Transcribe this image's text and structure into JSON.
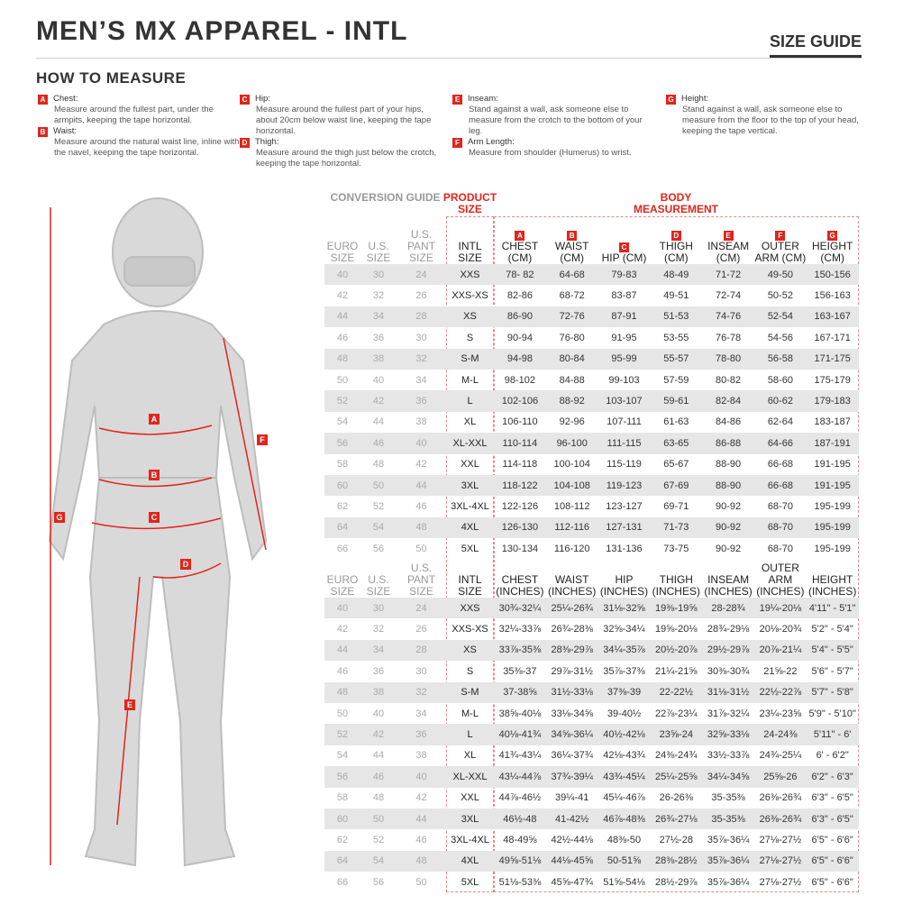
{
  "header": {
    "title": "MEN’S MX APPAREL - INTL",
    "size_guide": "SIZE GUIDE"
  },
  "how_to_measure": {
    "title": "HOW TO MEASURE",
    "items": [
      {
        "letter": "A",
        "label": "Chest:",
        "text": "Measure around the fullest part, under the armpits, keeping the tape horizontal."
      },
      {
        "letter": "B",
        "label": "Waist:",
        "text": "Measure around the natural waist line, inline with the navel, keeping the tape horizontal."
      },
      {
        "letter": "C",
        "label": "Hip:",
        "text": "Measure around the fullest part of your hips, about 20cm below waist line, keeping the tape horizontal."
      },
      {
        "letter": "D",
        "label": "Thigh:",
        "text": "Measure around the thigh just below the crotch, keeping the tape horizontal."
      },
      {
        "letter": "E",
        "label": "Inseam:",
        "text": "Stand against a wall, ask someone else to measure from the crotch to the bottom of your leg."
      },
      {
        "letter": "F",
        "label": "Arm Length:",
        "text": "Measure from shoulder (Humerus) to wrist."
      },
      {
        "letter": "G",
        "label": "Height:",
        "text": "Stand against a wall, ask someone else to measure from the floor to the top of your head, keeping the tape vertical."
      }
    ]
  },
  "colors": {
    "accent": "#e1251b",
    "shade": "#e6e6e6"
  },
  "table": {
    "conversion_guide": "CONVERSION GUIDE",
    "product_size": "PRODUCT SIZE",
    "body_measurement": "BODY MEASUREMENT",
    "letters": [
      "A",
      "B",
      "C",
      "D",
      "E",
      "F",
      "G"
    ],
    "conv_headers": [
      "EURO SIZE",
      "U.S. SIZE",
      "U.S. PANT SIZE"
    ],
    "intl_header": "INTL SIZE",
    "cm_headers": [
      "CHEST (CM)",
      "WAIST (CM)",
      "HIP (CM)",
      "THIGH (CM)",
      "INSEAM (CM)",
      "OUTER ARM (CM)",
      "HEIGHT (CM)"
    ],
    "in_headers": [
      "CHEST (INCHES)",
      "WAIST (INCHES)",
      "HIP (INCHES)",
      "THIGH (INCHES)",
      "INSEAM (INCHES)",
      "OUTER ARM (INCHES)",
      "HEIGHT (INCHES)"
    ],
    "conversion": [
      [
        "40",
        "30",
        "24"
      ],
      [
        "42",
        "32",
        "26"
      ],
      [
        "44",
        "34",
        "28"
      ],
      [
        "46",
        "36",
        "30"
      ],
      [
        "48",
        "38",
        "32"
      ],
      [
        "50",
        "40",
        "34"
      ],
      [
        "52",
        "42",
        "36"
      ],
      [
        "54",
        "44",
        "38"
      ],
      [
        "56",
        "46",
        "40"
      ],
      [
        "58",
        "48",
        "42"
      ],
      [
        "60",
        "50",
        "44"
      ],
      [
        "62",
        "52",
        "46"
      ],
      [
        "64",
        "54",
        "48"
      ],
      [
        "66",
        "56",
        "50"
      ]
    ],
    "intl": [
      "XXS",
      "XXS-XS",
      "XS",
      "S",
      "S-M",
      "M-L",
      "L",
      "XL",
      "XL-XXL",
      "XXL",
      "3XL",
      "3XL-4XL",
      "4XL",
      "5XL"
    ],
    "cm": [
      [
        "78- 82",
        "64-68",
        "79-83",
        "48-49",
        "71-72",
        "49-50",
        "150-156"
      ],
      [
        "82-86",
        "68-72",
        "83-87",
        "49-51",
        "72-74",
        "50-52",
        "156-163"
      ],
      [
        "86-90",
        "72-76",
        "87-91",
        "51-53",
        "74-76",
        "52-54",
        "163-167"
      ],
      [
        "90-94",
        "76-80",
        "91-95",
        "53-55",
        "76-78",
        "54-56",
        "167-171"
      ],
      [
        "94-98",
        "80-84",
        "95-99",
        "55-57",
        "78-80",
        "56-58",
        "171-175"
      ],
      [
        "98-102",
        "84-88",
        "99-103",
        "57-59",
        "80-82",
        "58-60",
        "175-179"
      ],
      [
        "102-106",
        "88-92",
        "103-107",
        "59-61",
        "82-84",
        "60-62",
        "179-183"
      ],
      [
        "106-110",
        "92-96",
        "107-111",
        "61-63",
        "84-86",
        "62-64",
        "183-187"
      ],
      [
        "110-114",
        "96-100",
        "111-115",
        "63-65",
        "86-88",
        "64-66",
        "187-191"
      ],
      [
        "114-118",
        "100-104",
        "115-119",
        "65-67",
        "88-90",
        "66-68",
        "191-195"
      ],
      [
        "118-122",
        "104-108",
        "119-123",
        "67-69",
        "88-90",
        "66-68",
        "191-195"
      ],
      [
        "122-126",
        "108-112",
        "123-127",
        "69-71",
        "90-92",
        "68-70",
        "195-199"
      ],
      [
        "126-130",
        "112-116",
        "127-131",
        "71-73",
        "90-92",
        "68-70",
        "195-199"
      ],
      [
        "130-134",
        "116-120",
        "131-136",
        "73-75",
        "90-92",
        "68-70",
        "195-199"
      ]
    ],
    "inches": [
      [
        "30¾-32¼",
        "25¼-26¾",
        "31⅛-32⅝",
        "19⅜-19⅝",
        "28-28¾",
        "19¼-20⅛",
        "4'11\" - 5'1\""
      ],
      [
        "32¼-33⅞",
        "26¾-28⅜",
        "32⅝-34¼",
        "19⅝-20⅛",
        "28¾-29⅛",
        "20⅛-20¾",
        "5'2\" - 5'4\""
      ],
      [
        "33⅞-35⅜",
        "28⅜-29⅞",
        "34¼-35⅞",
        "20½-20⅞",
        "29½-29⅞",
        "20⅞-21¼",
        "5'4\" - 5'5\""
      ],
      [
        "35⅜-37",
        "29⅞-31½",
        "35⅞-37⅜",
        "21¼-21⅝",
        "30⅜-30¾",
        "21⅝-22",
        "5'6\" - 5'7\""
      ],
      [
        "37-38⅝",
        "31½-33⅛",
        "37⅜-39",
        "22-22½",
        "31⅛-31½",
        "22½-22⅞",
        "5'7\" - 5'8\""
      ],
      [
        "38⅝-40⅛",
        "33⅛-34⅝",
        "39-40½",
        "22⅞-23¼",
        "31⅞-32¼",
        "23¼-23⅝",
        "5'9\" - 5'10\""
      ],
      [
        "40⅛-41¾",
        "34⅝-36¼",
        "40½-42⅛",
        "23⅝-24",
        "32⅝-33⅛",
        "24-24⅜",
        "5'11\" - 6'"
      ],
      [
        "41¾-43¼",
        "36¼-37¾",
        "42⅛-43¾",
        "24⅜-24¾",
        "33½-33⅞",
        "24¾-25¼",
        "6' - 6'2\""
      ],
      [
        "43¼-44⅞",
        "37¾-39¼",
        "43¾-45¼",
        "25¼-25⅝",
        "34¼-34⅝",
        "25⅝-26",
        "6'2\" - 6'3\""
      ],
      [
        "44⅞-46½",
        "39¼-41",
        "45¼-46⅞",
        "26-26⅜",
        "35-35⅜",
        "26⅜-26¾",
        "6'3\" - 6'5\""
      ],
      [
        "46½-48",
        "41-42½",
        "46⅞-48⅜",
        "26¾-27⅛",
        "35-35⅜",
        "26⅜-26¾",
        "6'3\" - 6'5\""
      ],
      [
        "48-49⅝",
        "42½-44⅛",
        "48⅜-50",
        "27½-28",
        "35⅞-36¼",
        "27⅛-27½",
        "6'5\" - 6'6\""
      ],
      [
        "49⅝-51⅛",
        "44⅛-45⅝",
        "50-51⅝",
        "28⅜-28½",
        "35⅞-36¼",
        "27⅛-27½",
        "6'5\" - 6'6\""
      ],
      [
        "51⅛-53⅜",
        "45⅝-47¾",
        "51⅝-54⅛",
        "28½-29⅞",
        "35⅞-36¼",
        "27⅛-27½",
        "6'5\" - 6'6\""
      ]
    ]
  }
}
